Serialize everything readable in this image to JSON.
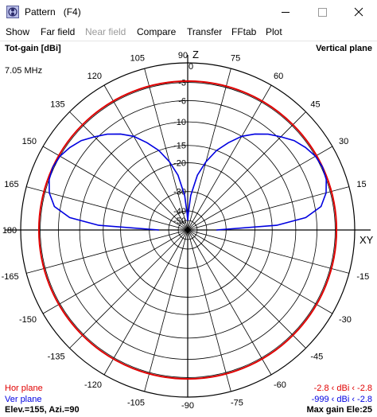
{
  "window": {
    "title": "Pattern   (F4)",
    "icon": "app-pattern-icon",
    "controls": [
      "minimize-icon",
      "maximize-icon",
      "close-icon"
    ]
  },
  "menu": [
    {
      "label": "Show",
      "enabled": true
    },
    {
      "label": "Far field",
      "enabled": true
    },
    {
      "label": "Near field",
      "enabled": false
    },
    {
      "label": "Compare",
      "enabled": true
    },
    {
      "label": "Transfer",
      "enabled": true
    },
    {
      "label": "FFtab",
      "enabled": true
    },
    {
      "label": "Plot",
      "enabled": true
    }
  ],
  "plot": {
    "title_left": "Tot-gain [dBi]",
    "title_right": "Vertical plane",
    "frequency": "7.05 MHz",
    "axis_z": "Z",
    "axis_xy": "XY",
    "legend": {
      "hor_label": "Hor plane",
      "hor_value": "-2.8 ‹ dBi ‹ -2.8",
      "ver_label": "Ver plane",
      "ver_value": "-999 ‹ dBi ‹ -2.8",
      "hor_color": "#e00000",
      "ver_color": "#0000e0"
    },
    "footer_left": "Elev.=155, Azi.=90",
    "footer_right": "Max gain Ele:25"
  },
  "chart_data": {
    "type": "polar",
    "angle_labels": [
      {
        "deg": 90,
        "text": "90"
      },
      {
        "deg": 75,
        "text": "75"
      },
      {
        "deg": 60,
        "text": "60"
      },
      {
        "deg": 45,
        "text": "45"
      },
      {
        "deg": 30,
        "text": "30"
      },
      {
        "deg": 15,
        "text": "15"
      },
      {
        "deg": 105,
        "text": "105"
      },
      {
        "deg": 120,
        "text": "120"
      },
      {
        "deg": 135,
        "text": "135"
      },
      {
        "deg": 150,
        "text": "150"
      },
      {
        "deg": 165,
        "text": "165"
      },
      {
        "deg": 180,
        "text": "180"
      },
      {
        "deg": -165,
        "text": "-165"
      },
      {
        "deg": -150,
        "text": "-150"
      },
      {
        "deg": -135,
        "text": "-135"
      },
      {
        "deg": -120,
        "text": "-120"
      },
      {
        "deg": -105,
        "text": "-105"
      },
      {
        "deg": -90,
        "text": "-90"
      },
      {
        "deg": -75,
        "text": "-75"
      },
      {
        "deg": -60,
        "text": "-60"
      },
      {
        "deg": -45,
        "text": "-45"
      },
      {
        "deg": -30,
        "text": "-30"
      },
      {
        "deg": -15,
        "text": "-15"
      }
    ],
    "ring_labels": [
      {
        "db": 0,
        "text": "0"
      },
      {
        "db": -3,
        "text": "-3"
      },
      {
        "db": -6,
        "text": "-6"
      },
      {
        "db": -10,
        "text": "-10"
      },
      {
        "db": -15,
        "text": "-15"
      },
      {
        "db": -20,
        "text": "-20"
      },
      {
        "db": -30,
        "text": "-30"
      },
      {
        "db": -40,
        "text": "-40"
      },
      {
        "db": -50,
        "text": "-50"
      }
    ],
    "series": [
      {
        "name": "Hor plane",
        "values_dbi": [
          {
            "angle": 0,
            "dbi": -2.8
          },
          {
            "angle": 90,
            "dbi": -2.8
          },
          {
            "angle": 180,
            "dbi": -2.8
          },
          {
            "angle": 270,
            "dbi": -2.8
          }
        ]
      },
      {
        "name": "Ver plane",
        "values_dbi": [
          {
            "angle": 0,
            "dbi": -35
          },
          {
            "angle": 3,
            "dbi": -14
          },
          {
            "angle": 6,
            "dbi": -8
          },
          {
            "angle": 10,
            "dbi": -5
          },
          {
            "angle": 15,
            "dbi": -3.7
          },
          {
            "angle": 20,
            "dbi": -3.0
          },
          {
            "angle": 25,
            "dbi": -2.8
          },
          {
            "angle": 30,
            "dbi": -3.0
          },
          {
            "angle": 35,
            "dbi": -3.6
          },
          {
            "angle": 40,
            "dbi": -4.4
          },
          {
            "angle": 45,
            "dbi": -5.6
          },
          {
            "angle": 50,
            "dbi": -6.8
          },
          {
            "angle": 55,
            "dbi": -8.3
          },
          {
            "angle": 60,
            "dbi": -10
          },
          {
            "angle": 65,
            "dbi": -12.5
          },
          {
            "angle": 70,
            "dbi": -15
          },
          {
            "angle": 75,
            "dbi": -19
          },
          {
            "angle": 80,
            "dbi": -24
          },
          {
            "angle": 85,
            "dbi": -32
          },
          {
            "angle": 88,
            "dbi": -43
          },
          {
            "angle": 90,
            "dbi": -50
          },
          {
            "angle": 92,
            "dbi": -43
          },
          {
            "angle": 95,
            "dbi": -32
          },
          {
            "angle": 100,
            "dbi": -24
          },
          {
            "angle": 105,
            "dbi": -19
          },
          {
            "angle": 110,
            "dbi": -15
          },
          {
            "angle": 115,
            "dbi": -12.5
          },
          {
            "angle": 120,
            "dbi": -10
          },
          {
            "angle": 125,
            "dbi": -8.3
          },
          {
            "angle": 130,
            "dbi": -6.8
          },
          {
            "angle": 135,
            "dbi": -5.6
          },
          {
            "angle": 140,
            "dbi": -4.4
          },
          {
            "angle": 145,
            "dbi": -3.6
          },
          {
            "angle": 150,
            "dbi": -3.0
          },
          {
            "angle": 155,
            "dbi": -2.8
          },
          {
            "angle": 160,
            "dbi": -3.0
          },
          {
            "angle": 165,
            "dbi": -3.7
          },
          {
            "angle": 170,
            "dbi": -5
          },
          {
            "angle": 174,
            "dbi": -8
          },
          {
            "angle": 177,
            "dbi": -14
          },
          {
            "angle": 180,
            "dbi": -35
          }
        ]
      }
    ]
  }
}
